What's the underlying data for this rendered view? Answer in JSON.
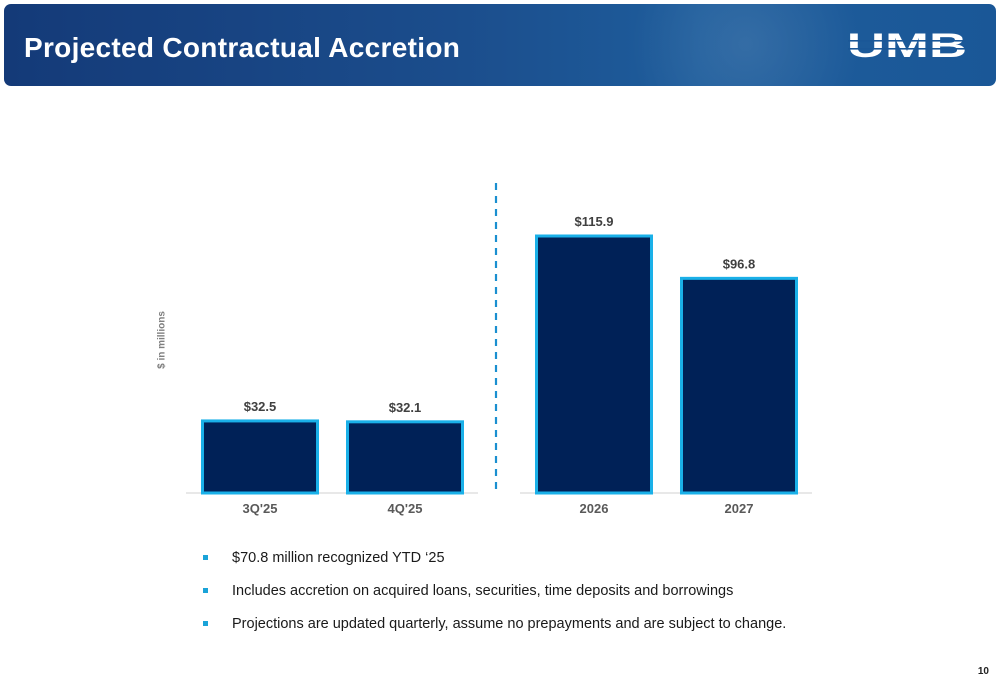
{
  "header": {
    "title": "Projected Contractual Accretion",
    "logo_text": "UMB"
  },
  "chart_data": {
    "type": "bar",
    "categories": [
      "3Q'25",
      "4Q'25",
      "2026",
      "2027"
    ],
    "values": [
      32.5,
      32.1,
      115.9,
      96.8
    ],
    "data_labels": [
      "$32.5",
      "$32.1",
      "$115.9",
      "$96.8"
    ],
    "title": "",
    "xlabel": "",
    "ylabel": "$ in millions",
    "ylim": [
      0,
      115.9
    ],
    "grid": false,
    "divider_after_category": 2,
    "bar_fill": "#002157",
    "bar_outline": "#1ab0e8",
    "divider_color": "#1a8fd0"
  },
  "bullets": [
    "$70.8 million recognized YTD ‘25",
    "Includes accretion on acquired loans, securities, time deposits and borrowings",
    "Projections are updated quarterly, assume no prepayments and are subject to change."
  ],
  "page_number": "10",
  "colors": {
    "accent": "#1aa3d8",
    "header_dark": "#143a78",
    "header_light": "#1e5d9c"
  }
}
